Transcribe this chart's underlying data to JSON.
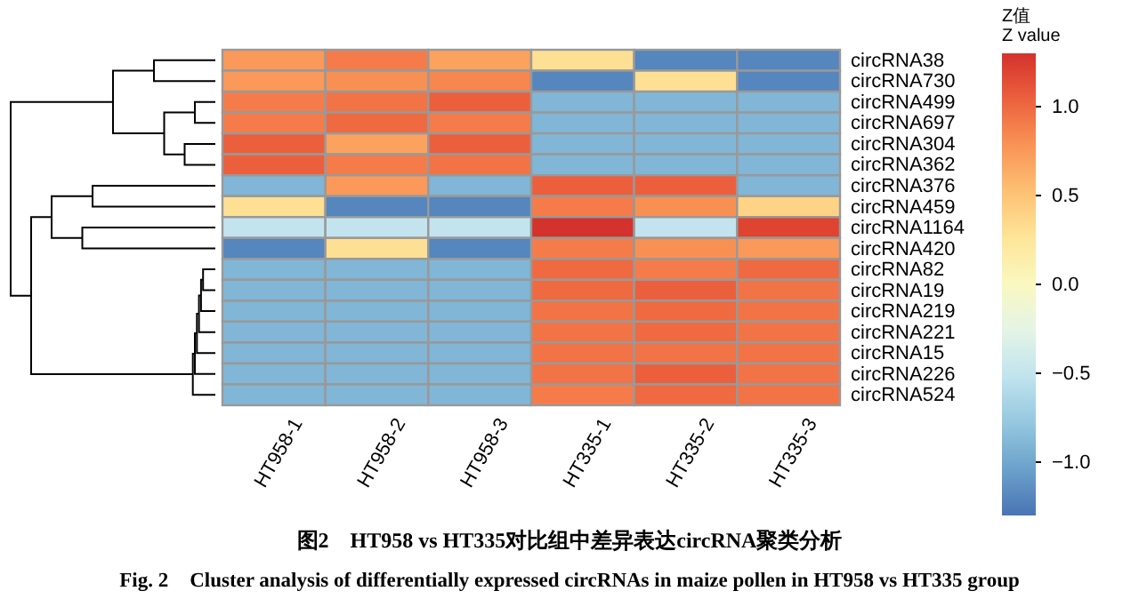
{
  "chart_data": {
    "type": "heatmap",
    "categories": [
      "HT958-1",
      "HT958-2",
      "HT958-3",
      "HT335-1",
      "HT335-2",
      "HT335-3"
    ],
    "y_categories": [
      "circRNA38",
      "circRNA730",
      "circRNA499",
      "circRNA697",
      "circRNA304",
      "circRNA362",
      "circRNA376",
      "circRNA459",
      "circRNA1164",
      "circRNA420",
      "circRNA82",
      "circRNA19",
      "circRNA219",
      "circRNA221",
      "circRNA15",
      "circRNA226",
      "circRNA524"
    ],
    "cells": [
      [
        0.75,
        0.9,
        0.7,
        0.3,
        -1.2,
        -1.2
      ],
      [
        0.75,
        0.8,
        0.85,
        -1.2,
        0.3,
        -1.2
      ],
      [
        0.9,
        0.95,
        1.05,
        -0.9,
        -0.9,
        -0.9
      ],
      [
        0.9,
        1.0,
        0.9,
        -0.9,
        -0.9,
        -0.9
      ],
      [
        1.05,
        0.7,
        1.05,
        -0.9,
        -0.9,
        -0.9
      ],
      [
        1.05,
        0.9,
        0.95,
        -0.9,
        -0.9,
        -0.9
      ],
      [
        -0.9,
        0.75,
        -0.9,
        1.05,
        1.05,
        -0.9
      ],
      [
        0.3,
        -1.2,
        -1.2,
        0.9,
        0.8,
        0.4
      ],
      [
        -0.5,
        -0.5,
        -0.5,
        1.3,
        -0.5,
        1.2
      ],
      [
        -1.2,
        0.3,
        -1.2,
        0.9,
        0.8,
        0.75
      ],
      [
        -0.9,
        -0.9,
        -0.9,
        1.0,
        0.9,
        1.0
      ],
      [
        -0.9,
        -0.9,
        -0.9,
        1.0,
        1.05,
        0.95
      ],
      [
        -0.9,
        -0.9,
        -0.9,
        0.95,
        1.0,
        0.95
      ],
      [
        -0.9,
        -0.9,
        -0.9,
        0.95,
        1.0,
        0.95
      ],
      [
        -0.9,
        -0.9,
        -0.9,
        0.95,
        0.95,
        0.95
      ],
      [
        -0.9,
        -0.9,
        -0.9,
        0.95,
        1.05,
        0.95
      ],
      [
        -0.9,
        -0.9,
        -0.9,
        0.9,
        1.0,
        0.95
      ]
    ],
    "clim": [
      -1.3,
      1.3
    ],
    "cticks": [
      {
        "value": -1,
        "label": "−1.0"
      },
      {
        "value": -0.5,
        "label": "−0.5"
      },
      {
        "value": 0,
        "label": "0.0"
      },
      {
        "value": 0.5,
        "label": "0.5"
      },
      {
        "value": 1,
        "label": "1.0"
      }
    ],
    "clabel": "Z值\nZ value",
    "annotations": [
      "图2　HT958 vs HT335对比组中差异表达circRNA聚类分析",
      "Fig. 2　Cluster analysis of differentially expressed circRNAs in maize pollen in HT958 vs HT335 group"
    ]
  }
}
